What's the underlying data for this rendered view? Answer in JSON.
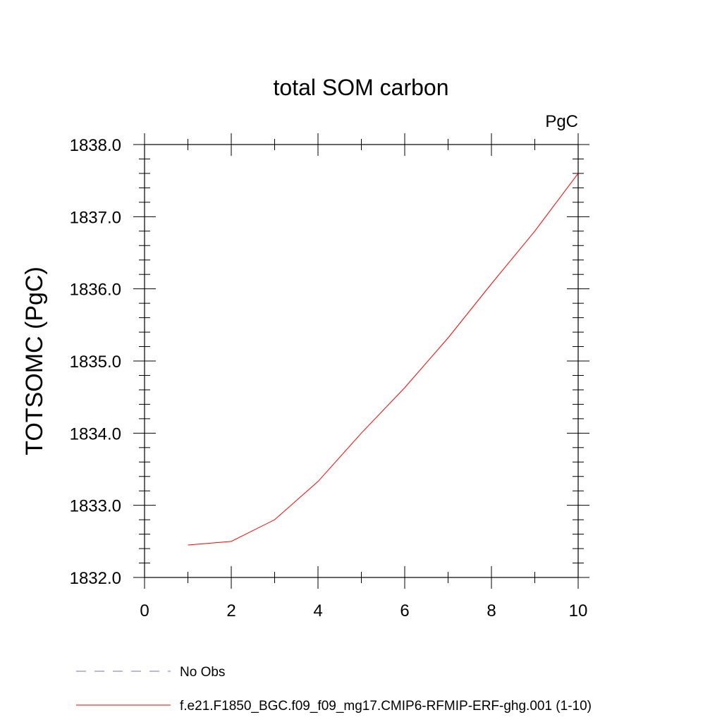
{
  "chart_data": {
    "type": "line",
    "title": "total SOM carbon",
    "units_label": "PgC",
    "xlabel": "",
    "ylabel": "TOTSOMC  (PgC)",
    "xlim": [
      0,
      10
    ],
    "ylim": [
      1832.0,
      1838.0
    ],
    "x_ticks": [
      0,
      2,
      4,
      6,
      8,
      10
    ],
    "x_tick_labels": [
      "0",
      "2",
      "4",
      "6",
      "8",
      "10"
    ],
    "y_ticks": [
      1832.0,
      1833.0,
      1834.0,
      1835.0,
      1836.0,
      1837.0,
      1838.0
    ],
    "y_tick_labels": [
      "1832.0",
      "1833.0",
      "1834.0",
      "1835.0",
      "1836.0",
      "1837.0",
      "1838.0"
    ],
    "x_minor_step": 1,
    "y_minor_step": 0.2,
    "grid": false,
    "legend_position": "bottom",
    "series": [
      {
        "name": "f.e21.F1850_BGC.f09_f09_mg17.CMIP6-RFMIP-ERF-ghg.001 (1-10)",
        "color": "#ff0000",
        "dash": "solid",
        "x": [
          1,
          2,
          3,
          4,
          5,
          6,
          7,
          8,
          9,
          10
        ],
        "values": [
          1832.45,
          1832.5,
          1832.8,
          1833.33,
          1834.0,
          1834.63,
          1835.32,
          1836.07,
          1836.8,
          1837.6
        ]
      },
      {
        "name": "No Obs",
        "color": "#7b6fb5",
        "dash": "dashed",
        "x": [],
        "values": []
      }
    ]
  }
}
